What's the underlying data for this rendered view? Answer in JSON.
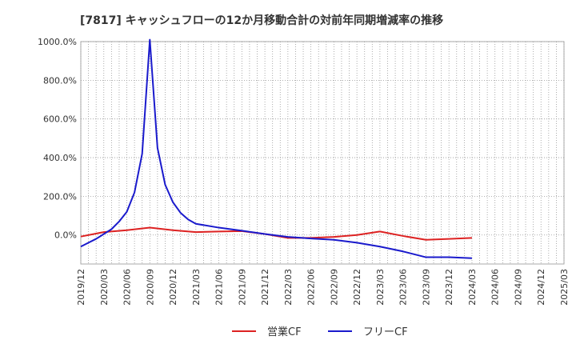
{
  "chart_data": {
    "type": "line",
    "title": "[7817]  キャッシュフローの12か月移動合計の対前年同期増減率の推移",
    "xlabel": "",
    "ylabel": "",
    "ylim": [
      -150,
      1000
    ],
    "yticks": [
      0,
      200,
      400,
      600,
      800,
      1000
    ],
    "ytick_labels": [
      "0.0%",
      "200.0%",
      "400.0%",
      "600.0%",
      "800.0%",
      "1000.0%"
    ],
    "x_start": "2019-12",
    "x_end": "2025-03",
    "xtick_labels": [
      "2019/12",
      "2020/03",
      "2020/06",
      "2020/09",
      "2020/12",
      "2021/03",
      "2021/06",
      "2021/09",
      "2021/12",
      "2022/03",
      "2022/06",
      "2022/09",
      "2022/12",
      "2023/03",
      "2023/06",
      "2023/09",
      "2023/12",
      "2024/03",
      "2024/06",
      "2024/09",
      "2024/12",
      "2025/03"
    ],
    "grid": true,
    "legend_position": "bottom",
    "series": [
      {
        "name": "営業CF",
        "color": "#dd2222",
        "points": [
          [
            "2019-12",
            -8
          ],
          [
            "2020-03",
            15
          ],
          [
            "2020-06",
            25
          ],
          [
            "2020-09",
            38
          ],
          [
            "2020-12",
            25
          ],
          [
            "2021-03",
            15
          ],
          [
            "2021-06",
            18
          ],
          [
            "2021-09",
            20
          ],
          [
            "2021-12",
            5
          ],
          [
            "2022-03",
            -15
          ],
          [
            "2022-06",
            -15
          ],
          [
            "2022-09",
            -10
          ],
          [
            "2022-12",
            0
          ],
          [
            "2023-03",
            18
          ],
          [
            "2023-06",
            -5
          ],
          [
            "2023-09",
            -25
          ],
          [
            "2023-12",
            -20
          ],
          [
            "2024-03",
            -15
          ]
        ]
      },
      {
        "name": "フリーCF",
        "color": "#1a1acc",
        "points": [
          [
            "2019-12",
            -60
          ],
          [
            "2020-01",
            -40
          ],
          [
            "2020-02",
            -20
          ],
          [
            "2020-03",
            5
          ],
          [
            "2020-04",
            30
          ],
          [
            "2020-05",
            70
          ],
          [
            "2020-06",
            120
          ],
          [
            "2020-07",
            220
          ],
          [
            "2020-08",
            420
          ],
          [
            "2020-09",
            1010
          ],
          [
            "2020-10",
            450
          ],
          [
            "2020-11",
            260
          ],
          [
            "2020-12",
            170
          ],
          [
            "2021-01",
            115
          ],
          [
            "2021-02",
            80
          ],
          [
            "2021-03",
            58
          ],
          [
            "2021-06",
            38
          ],
          [
            "2021-09",
            22
          ],
          [
            "2021-12",
            5
          ],
          [
            "2022-03",
            -10
          ],
          [
            "2022-06",
            -18
          ],
          [
            "2022-09",
            -25
          ],
          [
            "2022-12",
            -40
          ],
          [
            "2023-03",
            -60
          ],
          [
            "2023-06",
            -85
          ],
          [
            "2023-09",
            -115
          ],
          [
            "2023-12",
            -115
          ],
          [
            "2024-03",
            -120
          ]
        ]
      }
    ]
  }
}
